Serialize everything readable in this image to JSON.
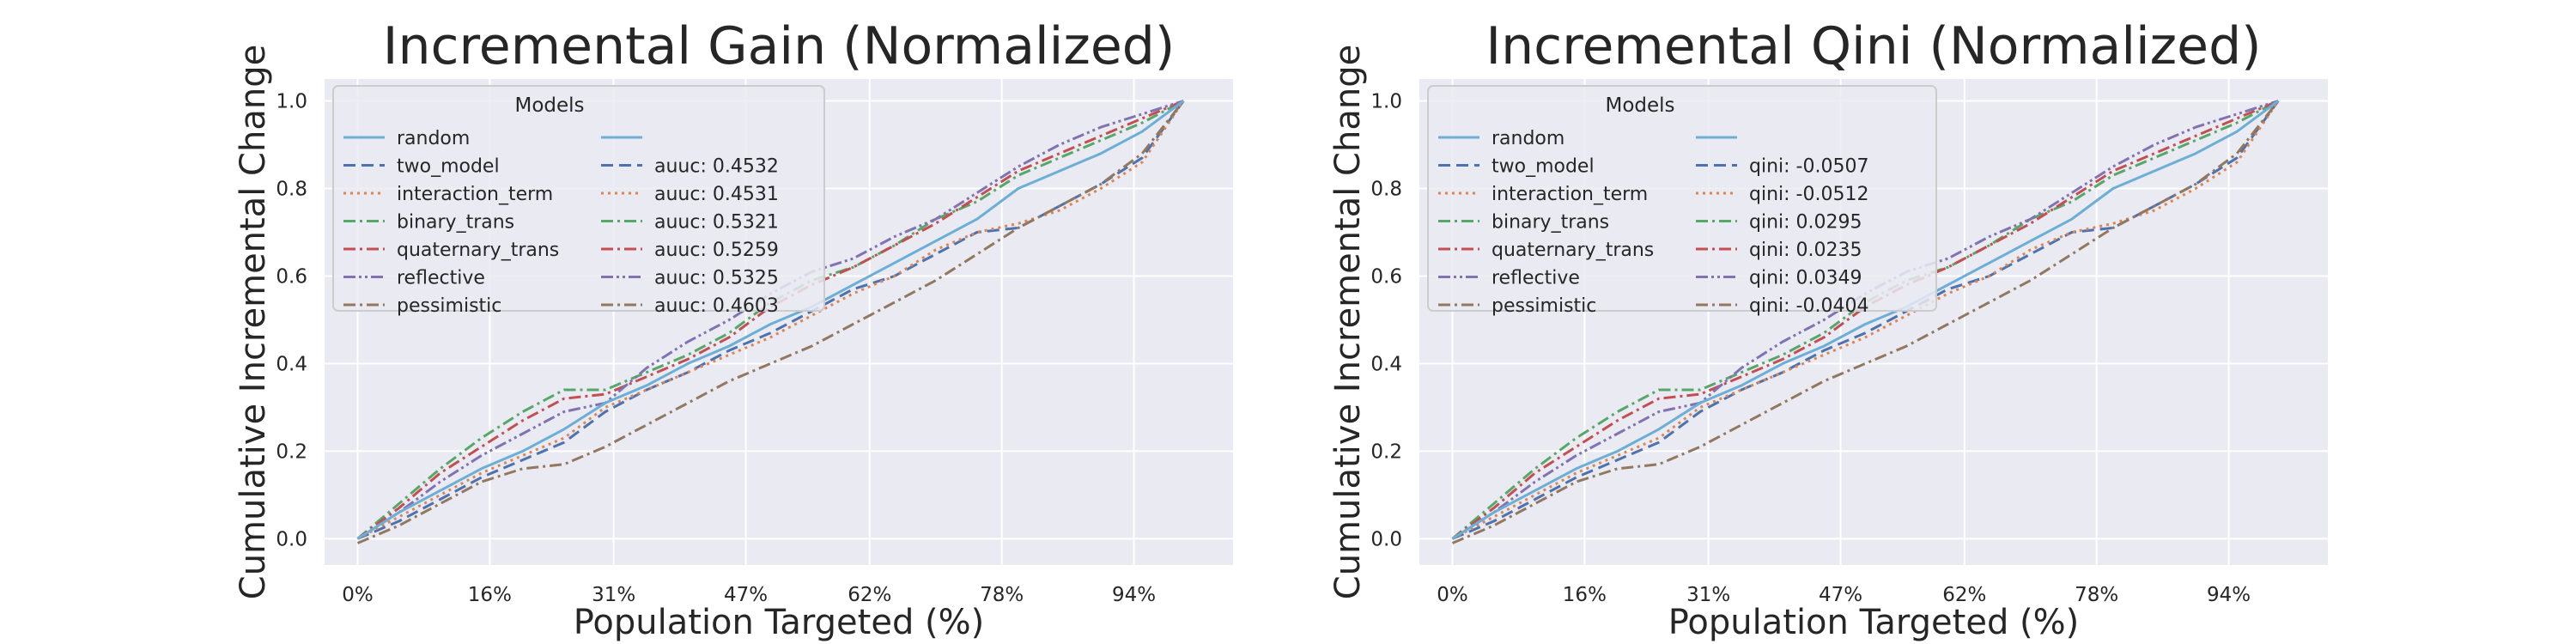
{
  "figure": {
    "background": "#ffffff",
    "plot_background": "#eaeaf2",
    "grid_color": "#ffffff"
  },
  "series_styles": [
    {
      "key": "random",
      "color": "#6baed6",
      "dash": "solid"
    },
    {
      "key": "two_model",
      "color": "#4c72b0",
      "dash": "dashed"
    },
    {
      "key": "interaction_term",
      "color": "#dd8452",
      "dash": "dotted"
    },
    {
      "key": "binary_trans",
      "color": "#55a868",
      "dash": "dashdot"
    },
    {
      "key": "quaternary_trans",
      "color": "#c44e52",
      "dash": "dashdot"
    },
    {
      "key": "reflective",
      "color": "#8172b3",
      "dash": "dashdotdot"
    },
    {
      "key": "pessimistic",
      "color": "#937860",
      "dash": "dashdot"
    }
  ],
  "chart_data": [
    {
      "type": "line",
      "title": "Incremental Gain (Normalized)",
      "xlabel": "Population Targeted (%)",
      "ylabel": "Cumulative Incremental Change",
      "xlim": [
        -4,
        106
      ],
      "ylim": [
        -0.06,
        1.05
      ],
      "xticks": [
        0,
        16,
        31,
        47,
        62,
        78,
        94
      ],
      "xtick_labels": [
        "0%",
        "16%",
        "31%",
        "47%",
        "62%",
        "78%",
        "94%"
      ],
      "yticks": [
        0.0,
        0.2,
        0.4,
        0.6,
        0.8,
        1.0
      ],
      "ytick_labels": [
        "0.0",
        "0.2",
        "0.4",
        "0.6",
        "0.8",
        "1.0"
      ],
      "grid": true,
      "legend": {
        "title": "Models",
        "placement": "top-left",
        "names": [
          "random",
          "two_model",
          "interaction_term",
          "binary_trans",
          "quaternary_trans",
          "reflective",
          "pessimistic"
        ],
        "scores": [
          "",
          "auuc: 0.4532",
          "auuc: 0.4531",
          "auuc: 0.5321",
          "auuc: 0.5259",
          "auuc: 0.5325",
          "auuc: 0.4603"
        ]
      },
      "x": [
        0,
        5,
        10,
        15,
        20,
        25,
        30,
        35,
        40,
        45,
        50,
        55,
        60,
        65,
        70,
        75,
        80,
        85,
        90,
        95,
        100
      ],
      "series": [
        {
          "name": "random",
          "values": [
            0.0,
            0.06,
            0.11,
            0.16,
            0.2,
            0.25,
            0.31,
            0.35,
            0.4,
            0.44,
            0.49,
            0.53,
            0.58,
            0.63,
            0.68,
            0.73,
            0.8,
            0.84,
            0.88,
            0.93,
            1.0
          ]
        },
        {
          "name": "two_model",
          "values": [
            0.0,
            0.04,
            0.09,
            0.14,
            0.18,
            0.22,
            0.29,
            0.34,
            0.38,
            0.43,
            0.47,
            0.52,
            0.57,
            0.6,
            0.65,
            0.7,
            0.71,
            0.76,
            0.81,
            0.87,
            1.0
          ]
        },
        {
          "name": "interaction_term",
          "values": [
            0.0,
            0.05,
            0.1,
            0.15,
            0.19,
            0.23,
            0.3,
            0.34,
            0.38,
            0.42,
            0.46,
            0.51,
            0.56,
            0.6,
            0.66,
            0.7,
            0.72,
            0.75,
            0.8,
            0.86,
            1.0
          ]
        },
        {
          "name": "binary_trans",
          "values": [
            0.0,
            0.08,
            0.16,
            0.23,
            0.29,
            0.34,
            0.34,
            0.38,
            0.42,
            0.47,
            0.54,
            0.59,
            0.62,
            0.67,
            0.73,
            0.77,
            0.83,
            0.87,
            0.91,
            0.95,
            1.0
          ]
        },
        {
          "name": "quaternary_trans",
          "values": [
            0.0,
            0.07,
            0.15,
            0.21,
            0.27,
            0.32,
            0.33,
            0.37,
            0.41,
            0.46,
            0.53,
            0.58,
            0.62,
            0.67,
            0.72,
            0.78,
            0.84,
            0.88,
            0.92,
            0.96,
            1.0
          ]
        },
        {
          "name": "reflective",
          "values": [
            0.0,
            0.06,
            0.13,
            0.19,
            0.24,
            0.29,
            0.31,
            0.39,
            0.45,
            0.5,
            0.56,
            0.61,
            0.64,
            0.69,
            0.73,
            0.79,
            0.85,
            0.9,
            0.94,
            0.97,
            1.0
          ]
        },
        {
          "name": "pessimistic",
          "values": [
            -0.01,
            0.03,
            0.08,
            0.13,
            0.16,
            0.17,
            0.21,
            0.26,
            0.31,
            0.36,
            0.4,
            0.44,
            0.49,
            0.54,
            0.59,
            0.65,
            0.71,
            0.76,
            0.81,
            0.88,
            1.0
          ]
        }
      ]
    },
    {
      "type": "line",
      "title": "Incremental Qini (Normalized)",
      "xlabel": "Population Targeted (%)",
      "ylabel": "Cumulative Incremental Change",
      "xlim": [
        -4,
        106
      ],
      "ylim": [
        -0.06,
        1.05
      ],
      "xticks": [
        0,
        16,
        31,
        47,
        62,
        78,
        94
      ],
      "xtick_labels": [
        "0%",
        "16%",
        "31%",
        "47%",
        "62%",
        "78%",
        "94%"
      ],
      "yticks": [
        0.0,
        0.2,
        0.4,
        0.6,
        0.8,
        1.0
      ],
      "ytick_labels": [
        "0.0",
        "0.2",
        "0.4",
        "0.6",
        "0.8",
        "1.0"
      ],
      "grid": true,
      "legend": {
        "title": "Models",
        "placement": "top-left",
        "names": [
          "random",
          "two_model",
          "interaction_term",
          "binary_trans",
          "quaternary_trans",
          "reflective",
          "pessimistic"
        ],
        "scores": [
          "",
          "qini: -0.0507",
          "qini: -0.0512",
          "qini: 0.0295",
          "qini: 0.0235",
          "qini: 0.0349",
          "qini: -0.0404"
        ]
      },
      "x": [
        0,
        5,
        10,
        15,
        20,
        25,
        30,
        35,
        40,
        45,
        50,
        55,
        60,
        65,
        70,
        75,
        80,
        85,
        90,
        95,
        100
      ],
      "series": [
        {
          "name": "random",
          "values": [
            0.0,
            0.06,
            0.11,
            0.16,
            0.2,
            0.25,
            0.31,
            0.35,
            0.4,
            0.44,
            0.49,
            0.53,
            0.58,
            0.63,
            0.68,
            0.73,
            0.8,
            0.84,
            0.88,
            0.93,
            1.0
          ]
        },
        {
          "name": "two_model",
          "values": [
            0.0,
            0.04,
            0.09,
            0.14,
            0.18,
            0.22,
            0.29,
            0.34,
            0.38,
            0.43,
            0.47,
            0.52,
            0.57,
            0.6,
            0.65,
            0.7,
            0.71,
            0.76,
            0.81,
            0.87,
            1.0
          ]
        },
        {
          "name": "interaction_term",
          "values": [
            0.0,
            0.05,
            0.1,
            0.15,
            0.19,
            0.23,
            0.3,
            0.34,
            0.38,
            0.42,
            0.46,
            0.51,
            0.56,
            0.6,
            0.66,
            0.7,
            0.72,
            0.75,
            0.8,
            0.86,
            1.0
          ]
        },
        {
          "name": "binary_trans",
          "values": [
            0.0,
            0.08,
            0.16,
            0.23,
            0.29,
            0.34,
            0.34,
            0.38,
            0.42,
            0.47,
            0.54,
            0.59,
            0.62,
            0.67,
            0.73,
            0.77,
            0.83,
            0.87,
            0.91,
            0.95,
            1.0
          ]
        },
        {
          "name": "quaternary_trans",
          "values": [
            0.0,
            0.07,
            0.15,
            0.21,
            0.27,
            0.32,
            0.33,
            0.37,
            0.41,
            0.46,
            0.53,
            0.58,
            0.62,
            0.67,
            0.72,
            0.78,
            0.84,
            0.88,
            0.92,
            0.96,
            1.0
          ]
        },
        {
          "name": "reflective",
          "values": [
            0.0,
            0.06,
            0.13,
            0.19,
            0.24,
            0.29,
            0.31,
            0.39,
            0.45,
            0.5,
            0.56,
            0.61,
            0.64,
            0.69,
            0.73,
            0.79,
            0.85,
            0.9,
            0.94,
            0.97,
            1.0
          ]
        },
        {
          "name": "pessimistic",
          "values": [
            -0.01,
            0.03,
            0.08,
            0.13,
            0.16,
            0.17,
            0.21,
            0.26,
            0.31,
            0.36,
            0.4,
            0.44,
            0.49,
            0.54,
            0.59,
            0.65,
            0.71,
            0.76,
            0.81,
            0.88,
            1.0
          ]
        }
      ]
    }
  ]
}
